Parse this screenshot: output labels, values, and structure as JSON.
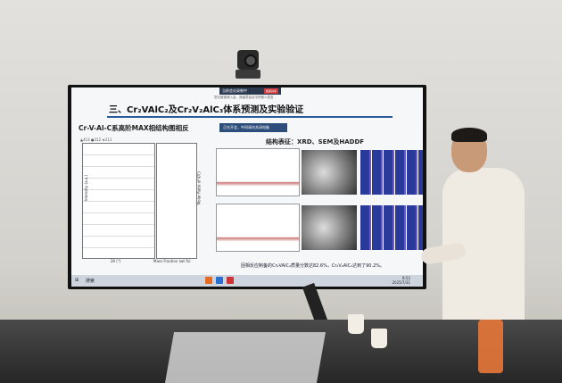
{
  "slide": {
    "title": "三、Cr₂VAlC₂及Cr₂V₂AlC₃体系预测及实验验证",
    "subtitle": "Cr-V-Al-C系高阶MAX相结构图相反",
    "structure_heading": "结构表征：XRD、SEM及HADDF",
    "legend": "▲413 ●312 ★211",
    "xrd_ylabel": "Intensity (a.u.)",
    "xrd_xlabel": "2θ (°)",
    "ratio_xlabel": "Mass Fraction (wt.%)",
    "ratio_ylabel": "Molar Ratio of V/Cr",
    "caption": "固相反应制备的Cr₂VAlC₂质量分数达82.6%，Cr₂V₂AlC₃达到了90.2%。"
  },
  "meeting_bar": {
    "label": "当前会议录制中",
    "end_button": "结束共享",
    "notice": "您已被邀请入会，请留意会议中的他人发言",
    "toast": "正在开会，中间请勿关闭电脑"
  },
  "taskbar": {
    "search_label": "搜索",
    "time": "8:52",
    "date": "2025/7/31"
  },
  "colors": {
    "accent": "#2a5c9a",
    "meeting_red": "#d23b3b",
    "sweater": "#efeae2"
  }
}
